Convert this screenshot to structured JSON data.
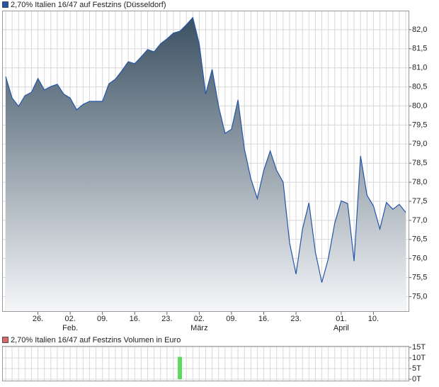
{
  "chart_data": [
    {
      "type": "area",
      "categories": [
        null,
        null,
        null,
        null,
        null,
        "26.",
        null,
        null,
        null,
        null,
        "02.",
        null,
        null,
        null,
        null,
        "09.",
        null,
        null,
        null,
        null,
        "16.",
        null,
        null,
        null,
        null,
        "23.",
        null,
        null,
        null,
        null,
        "02.",
        null,
        null,
        null,
        null,
        "09.",
        null,
        null,
        null,
        null,
        "16.",
        null,
        null,
        null,
        null,
        "23.",
        null,
        null,
        null,
        null,
        null,
        null,
        "01.",
        null,
        null,
        null,
        null,
        "10.",
        null,
        null,
        null,
        null,
        null
      ],
      "month_labels": [
        null,
        null,
        null,
        null,
        null,
        null,
        null,
        null,
        null,
        null,
        "Feb.",
        null,
        null,
        null,
        null,
        null,
        null,
        null,
        null,
        null,
        null,
        null,
        null,
        null,
        null,
        null,
        null,
        null,
        null,
        null,
        "März",
        null,
        null,
        null,
        null,
        null,
        null,
        null,
        null,
        null,
        null,
        null,
        null,
        null,
        null,
        null,
        null,
        null,
        null,
        null,
        null,
        null,
        "April",
        null,
        null,
        null,
        null,
        null,
        null,
        null,
        null,
        null,
        null
      ],
      "series": [
        {
          "name": "2,70% Italien 16/47 auf Festzins (Düsseldorf)",
          "color": "#2456a8",
          "values": [
            80.77,
            80.21,
            79.99,
            80.27,
            80.36,
            80.72,
            80.42,
            80.51,
            80.57,
            80.31,
            80.21,
            79.9,
            80.04,
            80.12,
            80.12,
            80.12,
            80.58,
            80.7,
            80.92,
            81.16,
            81.11,
            81.29,
            81.48,
            81.42,
            81.63,
            81.76,
            81.91,
            81.96,
            82.13,
            82.32,
            81.63,
            80.31,
            80.96,
            79.99,
            79.28,
            79.39,
            80.16,
            78.87,
            78.09,
            77.57,
            78.31,
            78.82,
            78.31,
            78.0,
            76.41,
            75.59,
            76.77,
            77.46,
            76.17,
            75.37,
            75.99,
            76.93,
            77.51,
            77.44,
            75.93,
            78.69,
            77.66,
            77.38,
            76.77,
            77.47,
            77.29,
            77.42,
            77.21
          ]
        }
      ],
      "fill_colors": [
        "#3a5062",
        "#f6f7f9"
      ],
      "ylim": [
        74.6,
        82.5
      ],
      "yticks": [
        {
          "value": 75,
          "label": "75,0"
        },
        {
          "value": 75.5,
          "label": "75,5"
        },
        {
          "value": 76,
          "label": "76,0"
        },
        {
          "value": 76.5,
          "label": "76,5"
        },
        {
          "value": 77,
          "label": "77,0"
        },
        {
          "value": 77.5,
          "label": "77,5"
        },
        {
          "value": 78,
          "label": "78,0"
        },
        {
          "value": 78.5,
          "label": "78,5"
        },
        {
          "value": 79,
          "label": "79,0"
        },
        {
          "value": 79.5,
          "label": "79,5"
        },
        {
          "value": 80,
          "label": "80,0"
        },
        {
          "value": 80.5,
          "label": "80,5"
        },
        {
          "value": 81,
          "label": "81,0"
        },
        {
          "value": 81.5,
          "label": "81,5"
        },
        {
          "value": 82,
          "label": "82,0"
        }
      ],
      "grid": true
    },
    {
      "type": "bar",
      "series": [
        {
          "name": "2,70% Italien 16/47 auf Festzins Volumen in Euro",
          "color": "#5ed85e",
          "legend_color": "#d86a6a",
          "values": [
            0,
            0,
            0,
            0,
            0,
            0,
            0,
            0,
            0,
            0,
            0,
            0,
            0,
            0,
            0,
            0,
            0,
            0,
            0,
            0,
            0,
            0,
            0,
            0,
            0,
            0,
            0,
            10500,
            0,
            0,
            0,
            0,
            0,
            0,
            0,
            0,
            0,
            0,
            0,
            0,
            0,
            0,
            0,
            0,
            0,
            0,
            0,
            0,
            0,
            0,
            0,
            0,
            0,
            0,
            0,
            0,
            0,
            0,
            0,
            0,
            0,
            0,
            0
          ]
        }
      ],
      "ylim": [
        0,
        15000
      ],
      "yticks": [
        {
          "value": 0,
          "label": "0T"
        },
        {
          "value": 5000,
          "label": "5T"
        },
        {
          "value": 10000,
          "label": "10T"
        },
        {
          "value": 15000,
          "label": "15T"
        }
      ],
      "grid": true
    }
  ]
}
